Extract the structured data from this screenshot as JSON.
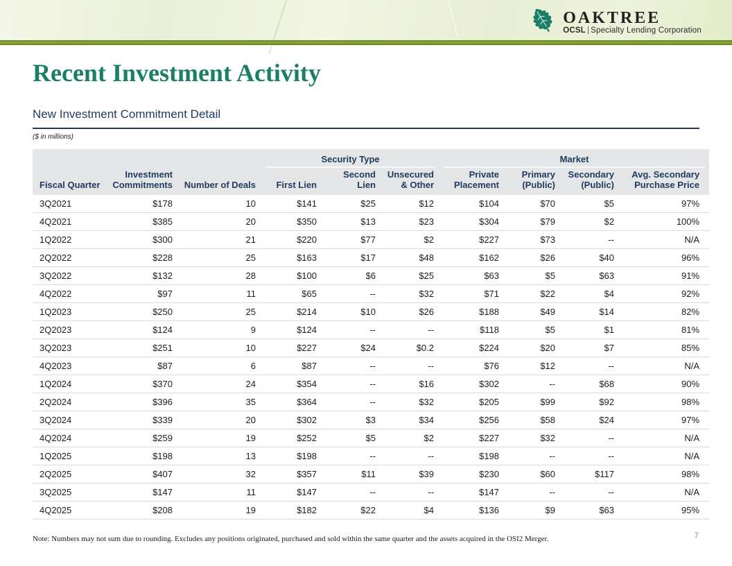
{
  "header": {
    "brand": "OAKTREE",
    "ocsl": "OCSL",
    "pipe": "|",
    "tagline": "Specialty Lending Corporation",
    "leaf_icon": "oak-leaf-icon",
    "colors": {
      "leaf_green": "#1b7f68",
      "stripe_olive": "#7d9c2e",
      "band_pale_green": "#edf2da"
    }
  },
  "page": {
    "title": "Recent Investment Activity",
    "subtitle": "New Investment Commitment Detail",
    "units_note": "($ in millions)",
    "footnote": "Note: Numbers may not sum due to rounding. Excludes any positions originated, purchased and sold within the same quarter and the assets acquired in the OSI2 Merger.",
    "page_number": "7",
    "colors": {
      "title_green": "#1a7f66",
      "navy": "#1e3a5f",
      "header_gray": "#e4e5e7"
    }
  },
  "table": {
    "group_headers": [
      {
        "label": "",
        "span": 3,
        "underline": false
      },
      {
        "label": "Security Type",
        "span": 3,
        "underline": true
      },
      {
        "label": "Market",
        "span": 4,
        "underline": true
      }
    ],
    "columns": [
      "Fiscal Quarter",
      "Investment\nCommitments",
      "Number of Deals",
      "First Lien",
      "Second Lien",
      "Unsecured\n& Other",
      "Private\nPlacement",
      "Primary\n(Public)",
      "Secondary\n(Public)",
      "Avg. Secondary\nPurchase Price"
    ],
    "rows": [
      [
        "3Q2021",
        "$178",
        "10",
        "$141",
        "$25",
        "$12",
        "$104",
        "$70",
        "$5",
        "97%"
      ],
      [
        "4Q2021",
        "$385",
        "20",
        "$350",
        "$13",
        "$23",
        "$304",
        "$79",
        "$2",
        "100%"
      ],
      [
        "1Q2022",
        "$300",
        "21",
        "$220",
        "$77",
        "$2",
        "$227",
        "$73",
        "--",
        "N/A"
      ],
      [
        "2Q2022",
        "$228",
        "25",
        "$163",
        "$17",
        "$48",
        "$162",
        "$26",
        "$40",
        "96%"
      ],
      [
        "3Q2022",
        "$132",
        "28",
        "$100",
        "$6",
        "$25",
        "$63",
        "$5",
        "$63",
        "91%"
      ],
      [
        "4Q2022",
        "$97",
        "11",
        "$65",
        "--",
        "$32",
        "$71",
        "$22",
        "$4",
        "92%"
      ],
      [
        "1Q2023",
        "$250",
        "25",
        "$214",
        "$10",
        "$26",
        "$188",
        "$49",
        "$14",
        "82%"
      ],
      [
        "2Q2023",
        "$124",
        "9",
        "$124",
        "--",
        "--",
        "$118",
        "$5",
        "$1",
        "81%"
      ],
      [
        "3Q2023",
        "$251",
        "10",
        "$227",
        "$24",
        "$0.2",
        "$224",
        "$20",
        "$7",
        "85%"
      ],
      [
        "4Q2023",
        "$87",
        "6",
        "$87",
        "--",
        "--",
        "$76",
        "$12",
        "--",
        "N/A"
      ],
      [
        "1Q2024",
        "$370",
        "24",
        "$354",
        "--",
        "$16",
        "$302",
        "--",
        "$68",
        "90%"
      ],
      [
        "2Q2024",
        "$396",
        "35",
        "$364",
        "--",
        "$32",
        "$205",
        "$99",
        "$92",
        "98%"
      ],
      [
        "3Q2024",
        "$339",
        "20",
        "$302",
        "$3",
        "$34",
        "$256",
        "$58",
        "$24",
        "97%"
      ],
      [
        "4Q2024",
        "$259",
        "19",
        "$252",
        "$5",
        "$2",
        "$227",
        "$32",
        "--",
        "N/A"
      ],
      [
        "1Q2025",
        "$198",
        "13",
        "$198",
        "--",
        "--",
        "$198",
        "--",
        "--",
        "N/A"
      ],
      [
        "2Q2025",
        "$407",
        "32",
        "$357",
        "$11",
        "$39",
        "$230",
        "$60",
        "$117",
        "98%"
      ],
      [
        "3Q2025",
        "$147",
        "11",
        "$147",
        "--",
        "--",
        "$147",
        "--",
        "--",
        "N/A"
      ],
      [
        "4Q2025",
        "$208",
        "19",
        "$182",
        "$22",
        "$4",
        "$136",
        "$9",
        "$63",
        "95%"
      ]
    ]
  }
}
